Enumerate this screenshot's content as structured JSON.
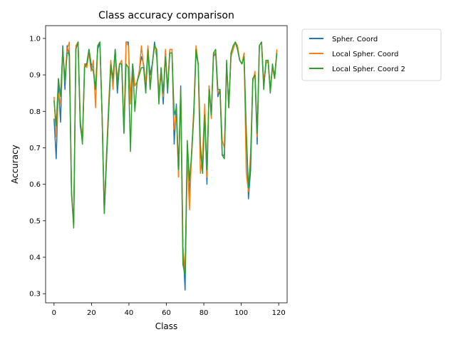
{
  "chart_data": {
    "type": "line",
    "title": "Class accuracy comparison",
    "xlabel": "Class",
    "ylabel": "Accuracy",
    "xlim": [
      -4.5,
      124.5
    ],
    "ylim": [
      0.275,
      1.035
    ],
    "x_ticks": [
      0,
      20,
      40,
      60,
      80,
      100,
      120
    ],
    "y_ticks": [
      0.3,
      0.4,
      0.5,
      0.6,
      0.7,
      0.8,
      0.9,
      1.0
    ],
    "x_tick_labels": [
      "0",
      "20",
      "40",
      "60",
      "80",
      "100",
      "120"
    ],
    "y_tick_labels": [
      "0.3",
      "0.4",
      "0.5",
      "0.6",
      "0.7",
      "0.8",
      "0.9",
      "1.0"
    ],
    "grid": false,
    "legend_position": "outside-right",
    "x_start": 0,
    "series": [
      {
        "name": "Spher. Coord",
        "color": "#1f77b4",
        "values": [
          0.78,
          0.67,
          0.87,
          0.77,
          0.98,
          0.86,
          0.98,
          0.95,
          0.58,
          0.49,
          0.97,
          0.99,
          0.76,
          0.72,
          0.93,
          0.93,
          0.97,
          0.93,
          0.92,
          0.86,
          0.97,
          0.99,
          0.79,
          0.52,
          0.66,
          0.8,
          0.92,
          0.88,
          0.97,
          0.85,
          0.93,
          0.93,
          0.74,
          0.99,
          0.99,
          0.83,
          0.93,
          0.87,
          0.88,
          0.91,
          0.95,
          0.93,
          0.87,
          0.97,
          0.9,
          0.93,
          0.99,
          0.95,
          0.84,
          0.91,
          0.82,
          0.96,
          0.85,
          0.97,
          0.97,
          0.71,
          0.82,
          0.62,
          0.87,
          0.43,
          0.31,
          0.69,
          0.57,
          0.69,
          0.8,
          0.96,
          0.93,
          0.69,
          0.64,
          0.8,
          0.6,
          0.87,
          0.79,
          0.95,
          0.96,
          0.84,
          0.86,
          0.68,
          0.68,
          0.93,
          0.81,
          0.95,
          0.97,
          0.99,
          0.97,
          0.94,
          0.93,
          0.95,
          0.74,
          0.56,
          0.64,
          0.89,
          0.9,
          0.71,
          0.98,
          0.99,
          0.87,
          0.93,
          0.94,
          0.86,
          0.92,
          0.9,
          0.96
        ]
      },
      {
        "name": "Local Spher. Coord",
        "color": "#ff7f0e",
        "values": [
          0.84,
          0.73,
          0.85,
          0.82,
          0.97,
          0.89,
          0.97,
          0.99,
          0.57,
          0.49,
          0.98,
          0.99,
          0.78,
          0.72,
          0.93,
          0.92,
          0.96,
          0.91,
          0.94,
          0.81,
          0.98,
          0.99,
          0.79,
          0.53,
          0.68,
          0.82,
          0.94,
          0.86,
          0.96,
          0.89,
          0.93,
          0.94,
          0.75,
          0.99,
          0.98,
          0.82,
          0.92,
          0.87,
          0.88,
          0.91,
          0.98,
          0.92,
          0.88,
          0.98,
          0.87,
          0.93,
          0.98,
          0.96,
          0.85,
          0.91,
          0.84,
          0.97,
          0.86,
          0.97,
          0.97,
          0.75,
          0.79,
          0.62,
          0.86,
          0.43,
          0.36,
          0.68,
          0.53,
          0.69,
          0.81,
          0.98,
          0.93,
          0.63,
          0.68,
          0.82,
          0.62,
          0.87,
          0.78,
          0.96,
          0.96,
          0.85,
          0.86,
          0.72,
          0.7,
          0.93,
          0.81,
          0.95,
          0.97,
          0.99,
          0.98,
          0.94,
          0.93,
          0.96,
          0.63,
          0.58,
          0.69,
          0.88,
          0.91,
          0.73,
          0.98,
          0.99,
          0.88,
          0.93,
          0.94,
          0.86,
          0.92,
          0.89,
          0.97
        ]
      },
      {
        "name": "Local Spher. Coord 2",
        "color": "#2ca02c",
        "values": [
          0.83,
          0.76,
          0.89,
          0.84,
          0.97,
          0.88,
          0.96,
          0.96,
          0.58,
          0.48,
          0.97,
          0.99,
          0.77,
          0.71,
          0.92,
          0.93,
          0.97,
          0.92,
          0.91,
          0.86,
          0.98,
          0.99,
          0.79,
          0.52,
          0.67,
          0.8,
          0.93,
          0.89,
          0.97,
          0.87,
          0.93,
          0.93,
          0.74,
          0.93,
          0.92,
          0.69,
          0.93,
          0.8,
          0.88,
          0.9,
          0.92,
          0.92,
          0.85,
          0.97,
          0.86,
          0.93,
          0.98,
          0.97,
          0.82,
          0.92,
          0.85,
          0.95,
          0.86,
          0.96,
          0.96,
          0.79,
          0.81,
          0.64,
          0.86,
          0.38,
          0.35,
          0.72,
          0.61,
          0.68,
          0.79,
          0.97,
          0.93,
          0.71,
          0.63,
          0.79,
          0.64,
          0.86,
          0.79,
          0.96,
          0.97,
          0.86,
          0.86,
          0.68,
          0.67,
          0.94,
          0.81,
          0.96,
          0.98,
          0.99,
          0.97,
          0.94,
          0.93,
          0.95,
          0.75,
          0.59,
          0.66,
          0.89,
          0.9,
          0.74,
          0.98,
          0.99,
          0.86,
          0.94,
          0.94,
          0.85,
          0.93,
          0.89,
          0.96
        ]
      }
    ]
  }
}
